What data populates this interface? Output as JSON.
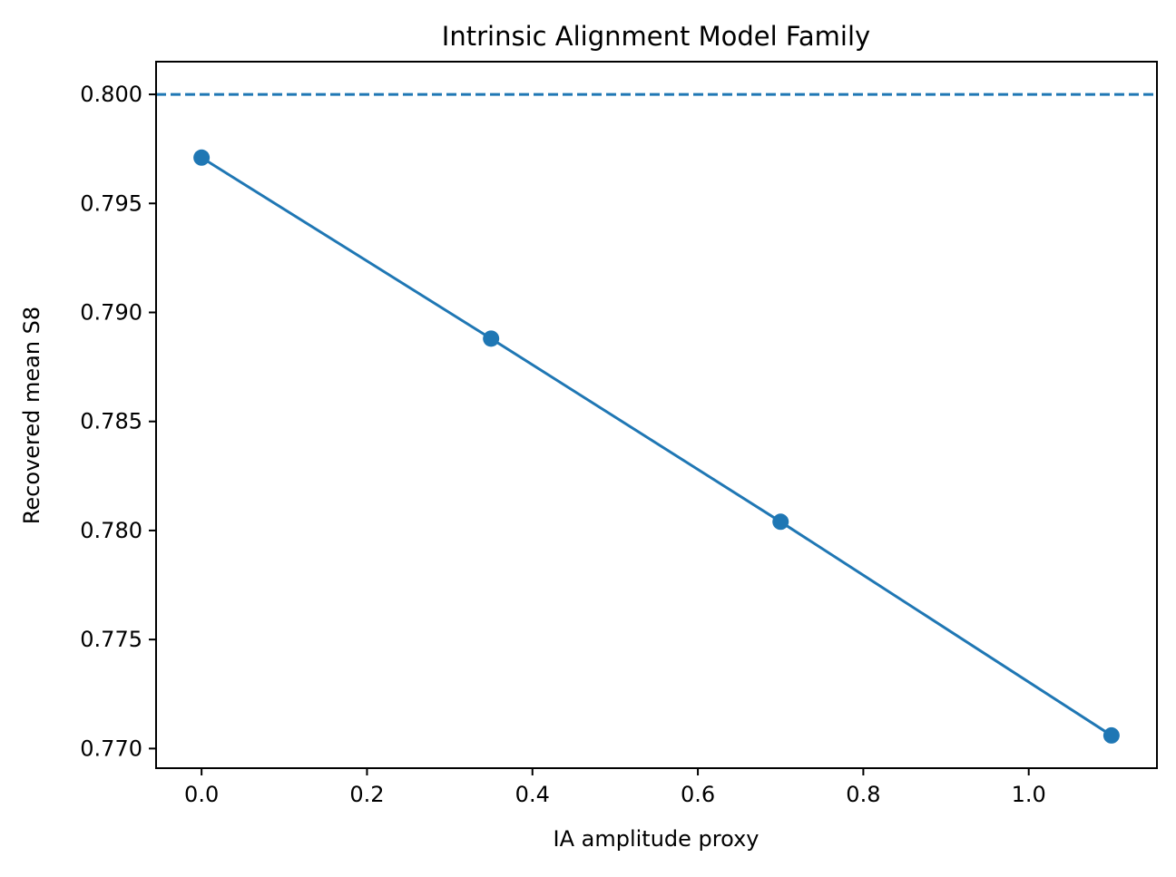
{
  "chart_data": {
    "type": "line",
    "title": "Intrinsic Alignment Model Family",
    "xlabel": "IA amplitude proxy",
    "ylabel": "Recovered mean S8",
    "xlim": [
      -0.055,
      1.155
    ],
    "ylim": [
      0.7691,
      0.8015
    ],
    "xticks": [
      0.0,
      0.2,
      0.4,
      0.6,
      0.8,
      1.0
    ],
    "xtick_labels": [
      "0.0",
      "0.2",
      "0.4",
      "0.6",
      "0.8",
      "1.0"
    ],
    "yticks": [
      0.77,
      0.775,
      0.78,
      0.785,
      0.79,
      0.795,
      0.8
    ],
    "ytick_labels": [
      "0.770",
      "0.775",
      "0.780",
      "0.785",
      "0.790",
      "0.795",
      "0.800"
    ],
    "grid": false,
    "series": [
      {
        "x": [
          0.0,
          0.35,
          0.7,
          1.1
        ],
        "y": [
          0.7971,
          0.7888,
          0.7804,
          0.7706
        ],
        "color": "#1f77b4",
        "marker": "circle",
        "line": "solid"
      }
    ],
    "reference_line": {
      "orientation": "horizontal",
      "y": 0.8,
      "color": "#1f77b4",
      "style": "dashed"
    }
  }
}
